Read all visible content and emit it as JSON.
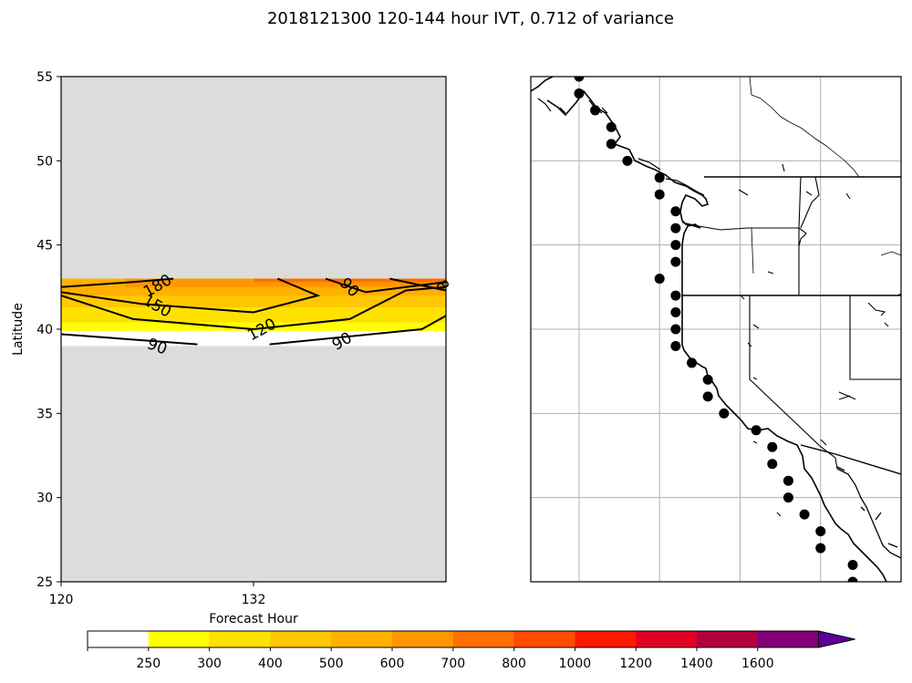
{
  "title": "2018121300 120-144 hour IVT, 0.712 of variance",
  "chart_data": {
    "type": "contour",
    "title": "2018121300 120-144 hour IVT, 0.712 of variance",
    "xlabel": "Forecast Hour",
    "ylabel": "Latitude",
    "xlim": [
      120,
      144
    ],
    "ylim": [
      25,
      55
    ],
    "xticks": [
      "120",
      "132"
    ],
    "yticks": [
      "25",
      "30",
      "35",
      "40",
      "45",
      "50",
      "55"
    ],
    "masked_color": "#dcdcdc",
    "hours": [
      120,
      121.5,
      123,
      124.5,
      126,
      127.5,
      129,
      130.5,
      132,
      133.5,
      135,
      136.5,
      138,
      139.5,
      141,
      142.5,
      144
    ],
    "filled_band_lat": [
      39,
      43
    ],
    "filled_levels": [
      {
        "lat_from": 42.8,
        "lat_to": 43,
        "hour_from": 132,
        "hour_to": 144,
        "bin": "700-800"
      },
      {
        "lat_from": 42.5,
        "lat_to": 43,
        "hour_from": 124,
        "hour_to": 144,
        "bin": "600-700"
      },
      {
        "lat_from": 42,
        "lat_to": 43,
        "hour_from": 120,
        "hour_to": 144,
        "bin": "500-600"
      },
      {
        "lat_from": 41.3,
        "lat_to": 42.5,
        "hour_from": 120,
        "hour_to": 144,
        "bin": "400-500"
      },
      {
        "lat_from": 40.4,
        "lat_to": 43,
        "hour_from": 120,
        "hour_to": 144,
        "bin": "300-400"
      },
      {
        "lat_from": 39.9,
        "lat_to": 43,
        "hour_from": 120,
        "hour_to": 144,
        "bin": "250-300"
      }
    ],
    "contours": [
      {
        "level": 180,
        "label": "180",
        "points": [
          [
            120,
            42.5
          ],
          [
            124.5,
            42.8
          ],
          [
            127,
            43
          ]
        ]
      },
      {
        "level": 150,
        "label": "150",
        "points": [
          [
            120,
            42.2
          ],
          [
            125,
            41.5
          ],
          [
            132,
            41.0
          ],
          [
            136,
            42.0
          ],
          [
            133.5,
            43
          ]
        ]
      },
      {
        "level": 120,
        "label": "120",
        "points": [
          [
            120,
            42.0
          ],
          [
            124.5,
            40.6
          ],
          [
            132,
            40.0
          ],
          [
            138,
            40.6
          ],
          [
            141.5,
            42.3
          ],
          [
            144,
            42.5
          ]
        ]
      },
      {
        "level": 90,
        "label": "90",
        "points": [
          [
            120,
            39.7
          ],
          [
            128.5,
            39.1
          ]
        ]
      },
      {
        "level": 90,
        "label": "90",
        "points": [
          [
            133,
            39.1
          ],
          [
            142.5,
            40.0
          ],
          [
            144,
            40.8
          ]
        ]
      },
      {
        "level": 90,
        "label": "90",
        "points": [
          [
            136.5,
            43
          ],
          [
            139,
            42.2
          ],
          [
            144,
            42.8
          ]
        ]
      },
      {
        "level": 90,
        "label": "90",
        "points": [
          [
            140.5,
            43
          ],
          [
            144,
            42.3
          ]
        ]
      }
    ],
    "contour_labels": [
      {
        "text": "180",
        "hour": 126,
        "lat": 42.6,
        "angle": -30
      },
      {
        "text": "150",
        "hour": 126,
        "lat": 41.4,
        "angle": 30
      },
      {
        "text": "120",
        "hour": 132.5,
        "lat": 40.0,
        "angle": -28
      },
      {
        "text": "90",
        "hour": 126,
        "lat": 39.0,
        "angle": 20
      },
      {
        "text": "90",
        "hour": 137.5,
        "lat": 39.3,
        "angle": -30
      },
      {
        "text": "90",
        "hour": 138,
        "lat": 42.5,
        "angle": 45
      },
      {
        "text": "8",
        "hour": 143.8,
        "lat": 42.6,
        "angle": 60
      }
    ],
    "colorbar": {
      "ticks": [
        "250",
        "300",
        "400",
        "500",
        "600",
        "700",
        "800",
        "1000",
        "1200",
        "1400",
        "1600"
      ],
      "colors": [
        "#ffffff",
        "#ffff00",
        "#ffe100",
        "#ffc800",
        "#ffb000",
        "#ff9700",
        "#ff7000",
        "#ff4c00",
        "#ff1a00",
        "#e00022",
        "#b00040",
        "#840078",
        "#5a009a"
      ],
      "extend": "max"
    },
    "map": {
      "region": "US West Coast",
      "lon_range": [
        -132,
        -109
      ],
      "lat_range": [
        25,
        55
      ],
      "gridlines_lon": [
        -129,
        -124,
        -119,
        -114
      ],
      "gridlines_lat": [
        30,
        35,
        40,
        45,
        50
      ],
      "gridlines_visible": true,
      "points": [
        {
          "lat": 55,
          "lon": -129
        },
        {
          "lat": 54,
          "lon": -129
        },
        {
          "lat": 53,
          "lon": -128
        },
        {
          "lat": 52,
          "lon": -127
        },
        {
          "lat": 51,
          "lon": -127
        },
        {
          "lat": 50,
          "lon": -126
        },
        {
          "lat": 49,
          "lon": -124
        },
        {
          "lat": 48,
          "lon": -124
        },
        {
          "lat": 47,
          "lon": -123
        },
        {
          "lat": 46,
          "lon": -123
        },
        {
          "lat": 45,
          "lon": -123
        },
        {
          "lat": 44,
          "lon": -123
        },
        {
          "lat": 43,
          "lon": -124
        },
        {
          "lat": 42,
          "lon": -123
        },
        {
          "lat": 41,
          "lon": -123
        },
        {
          "lat": 40,
          "lon": -123
        },
        {
          "lat": 39,
          "lon": -123
        },
        {
          "lat": 38,
          "lon": -122
        },
        {
          "lat": 37,
          "lon": -121
        },
        {
          "lat": 36,
          "lon": -121
        },
        {
          "lat": 35,
          "lon": -120
        },
        {
          "lat": 34,
          "lon": -118
        },
        {
          "lat": 33,
          "lon": -117
        },
        {
          "lat": 32,
          "lon": -117
        },
        {
          "lat": 31,
          "lon": -116
        },
        {
          "lat": 30,
          "lon": -116
        },
        {
          "lat": 29,
          "lon": -115
        },
        {
          "lat": 28,
          "lon": -114
        },
        {
          "lat": 27,
          "lon": -114
        },
        {
          "lat": 26,
          "lon": -112
        },
        {
          "lat": 25,
          "lon": -112
        }
      ]
    }
  }
}
